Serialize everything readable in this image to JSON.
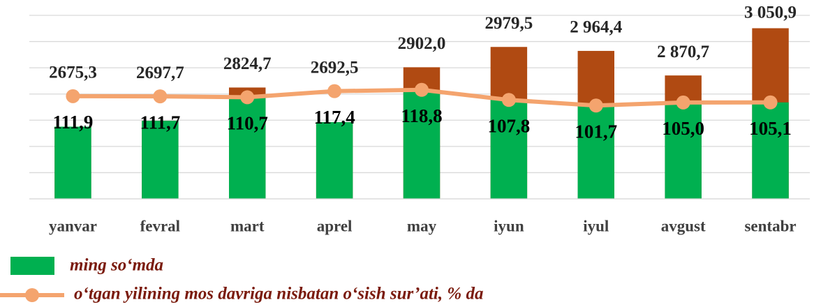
{
  "chart_data": {
    "type": "bar_line",
    "categories": [
      "yanvar",
      "fevral",
      "mart",
      "aprel",
      "may",
      "iyun",
      "iyul",
      "avgust",
      "sentabr"
    ],
    "series": [
      {
        "name": "ming so‘mda",
        "type": "bar",
        "color": "#00b050",
        "top_color": "#b04a12",
        "values": [
          2675.3,
          2697.7,
          2824.7,
          2692.5,
          2902.0,
          2979.5,
          2964.4,
          2870.7,
          3050.9
        ],
        "value_labels": [
          "2675,3",
          "2697,7",
          "2824,7",
          "2692,5",
          "2902,0",
          "2979,5",
          "2 964,4",
          "2 870,7",
          "3 050,9"
        ]
      },
      {
        "name": "o‘tgan yilining mos davriga nisbatan o‘sish sur’ati, % da",
        "type": "line",
        "axis": "y2",
        "color": "#f4a46e",
        "values": [
          111.9,
          111.7,
          110.7,
          117.4,
          118.8,
          107.8,
          101.7,
          105.0,
          105.1
        ],
        "value_labels": [
          "111,9",
          "111,7",
          "110,7",
          "117,4",
          "118,8",
          "107,8",
          "101,7",
          "105,0",
          "105,1"
        ]
      }
    ],
    "ylim": [
      2400,
      3100
    ],
    "yticks": [
      2400,
      2500,
      2600,
      2700,
      2800,
      2900,
      3000,
      3100
    ],
    "y2lim": [
      0,
      200
    ],
    "grid": true
  }
}
